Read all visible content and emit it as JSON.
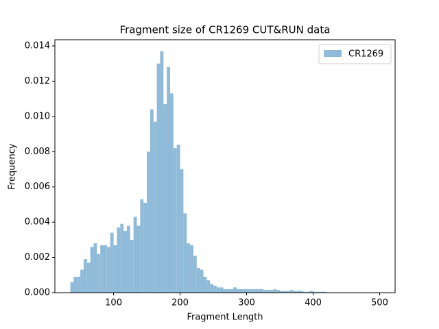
{
  "chart_data": {
    "type": "histogram",
    "title": "Fragment size of CR1269 CUT&RUN data",
    "x_label": "Fragment Length",
    "y_label": "Frequency",
    "bins": [
      35,
      40,
      45,
      50,
      55,
      60,
      65,
      70,
      75,
      80,
      85,
      90,
      95,
      100,
      105,
      110,
      115,
      120,
      125,
      130,
      135,
      140,
      145,
      150,
      155,
      160,
      165,
      170,
      175,
      180,
      185,
      190,
      195,
      200,
      205,
      210,
      215,
      220,
      225,
      230,
      235,
      240,
      245,
      250,
      255,
      260,
      265,
      270,
      275,
      280,
      285,
      290,
      295,
      300,
      305,
      310,
      315,
      320,
      325,
      330,
      335,
      340,
      345,
      350,
      355,
      360,
      365,
      370,
      375,
      380,
      385,
      390,
      395,
      400,
      405,
      410,
      415,
      420,
      425,
      430,
      435,
      440,
      445,
      450,
      455,
      460,
      465,
      470,
      475,
      480,
      485,
      490,
      495,
      500
    ],
    "series": [
      {
        "name": "CR1269",
        "color": "#8fbbd9",
        "values": [
          0.0006,
          0.0009,
          0.0009,
          0.0013,
          0.0019,
          0.0017,
          0.0026,
          0.0028,
          0.0022,
          0.0027,
          0.0027,
          0.0026,
          0.0034,
          0.0027,
          0.0037,
          0.0039,
          0.0035,
          0.0038,
          0.003,
          0.0043,
          0.0038,
          0.0053,
          0.0051,
          0.008,
          0.0104,
          0.0097,
          0.013,
          0.0137,
          0.0107,
          0.0128,
          0.0113,
          0.0082,
          0.0084,
          0.007,
          0.0045,
          0.0028,
          0.0027,
          0.0021,
          0.0014,
          0.0013,
          0.0009,
          0.0007,
          0.0005,
          0.0004,
          0.0003,
          0.0003,
          0.0002,
          0.0002,
          0.0002,
          0.0003,
          0.0002,
          0.0002,
          0.0002,
          0.0002,
          0.0002,
          0.0002,
          0.0002,
          0.0002,
          0.00015,
          0.00015,
          0.00015,
          0.0002,
          0.00015,
          0.0001,
          0.0001,
          0.0001,
          0.00015,
          0.0001,
          0.0001,
          0.0001,
          5e-05,
          5e-05,
          0.0001,
          5e-05,
          5e-05,
          5e-05,
          5e-05,
          0,
          0,
          0,
          0,
          0,
          0,
          0,
          0,
          0,
          0,
          0,
          0,
          0,
          0,
          0,
          0
        ]
      }
    ],
    "xlim": [
      11.75,
      523.25
    ],
    "ylim": [
      0,
      0.01435
    ],
    "xticks": [
      100,
      200,
      300,
      400,
      500
    ],
    "yticks": [
      {
        "value": 0,
        "label": "0.000"
      },
      {
        "value": 0.002,
        "label": "0.002"
      },
      {
        "value": 0.004,
        "label": "0.004"
      },
      {
        "value": 0.006,
        "label": "0.006"
      },
      {
        "value": 0.008,
        "label": "0.008"
      },
      {
        "value": 0.01,
        "label": "0.010"
      },
      {
        "value": 0.012,
        "label": "0.012"
      },
      {
        "value": 0.014,
        "label": "0.014"
      }
    ],
    "legend": "upper right"
  }
}
